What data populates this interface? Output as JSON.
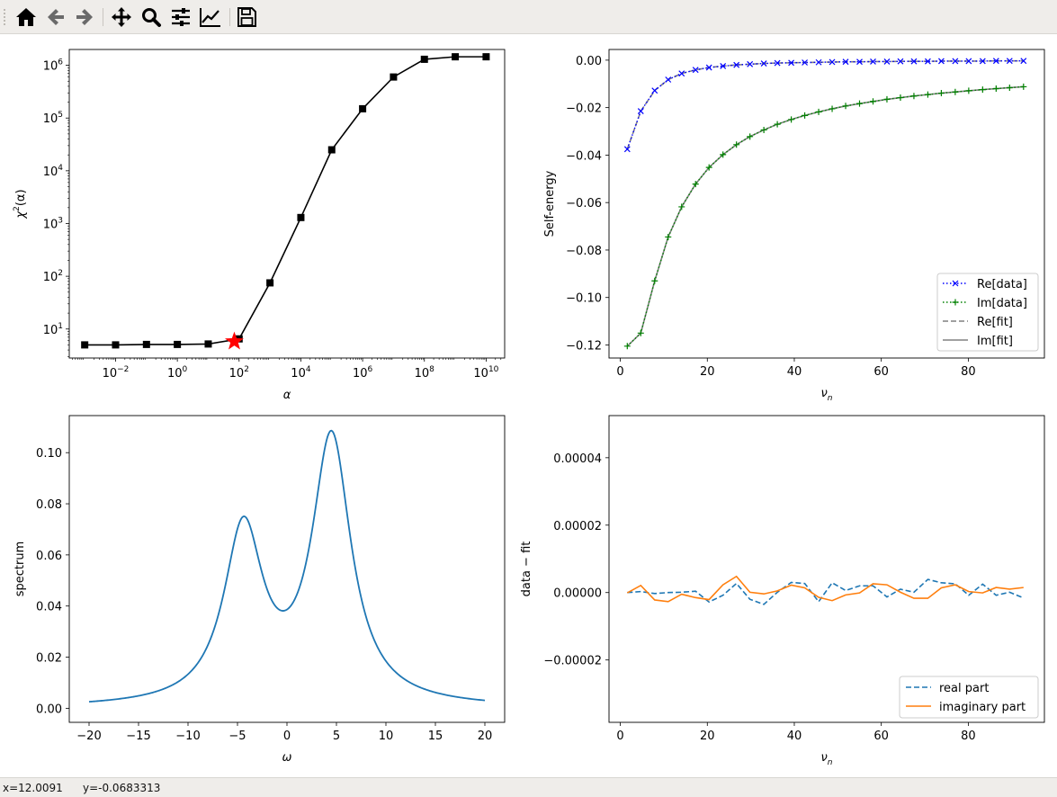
{
  "toolbar": {
    "buttons": [
      {
        "name": "home-button",
        "icon": "home-icon"
      },
      {
        "name": "back-button",
        "icon": "arrow-left-icon"
      },
      {
        "name": "forward-button",
        "icon": "arrow-right-icon"
      },
      {
        "name": "pan-button",
        "icon": "move-icon"
      },
      {
        "name": "zoom-button",
        "icon": "magnifier-icon"
      },
      {
        "name": "configure-subplots-button",
        "icon": "sliders-icon"
      },
      {
        "name": "edit-axis-button",
        "icon": "line-chart-icon"
      },
      {
        "name": "save-button",
        "icon": "floppy-disk-icon"
      }
    ]
  },
  "status": {
    "x": "x=12.0091",
    "y": "y=-0.0683313"
  },
  "chart_data": [
    {
      "id": "chi2",
      "type": "line",
      "xscale": "log",
      "yscale": "log",
      "xlabel_base": "α",
      "ylabel_base": "χ",
      "ylabel_sup": "2",
      "ylabel_tail": "(α)",
      "xlim_exp": [
        -3.5,
        10.6
      ],
      "ylim_exp": [
        0.45,
        6.3
      ],
      "xticks": [
        {
          "base": "10",
          "exp": "−2",
          "e": -2
        },
        {
          "base": "10",
          "exp": "0",
          "e": 0
        },
        {
          "base": "10",
          "exp": "2",
          "e": 2
        },
        {
          "base": "10",
          "exp": "4",
          "e": 4
        },
        {
          "base": "10",
          "exp": "6",
          "e": 6
        },
        {
          "base": "10",
          "exp": "8",
          "e": 8
        },
        {
          "base": "10",
          "exp": "10",
          "e": 10
        }
      ],
      "yticks": [
        {
          "base": "10",
          "exp": "1",
          "e": 1
        },
        {
          "base": "10",
          "exp": "2",
          "e": 2
        },
        {
          "base": "10",
          "exp": "3",
          "e": 3
        },
        {
          "base": "10",
          "exp": "4",
          "e": 4
        },
        {
          "base": "10",
          "exp": "5",
          "e": 5
        },
        {
          "base": "10",
          "exp": "6",
          "e": 6
        }
      ],
      "x_exp": [
        -3,
        -2,
        -1,
        0,
        1,
        2,
        3,
        4,
        5,
        6,
        7,
        8,
        9,
        10
      ],
      "y": [
        5.0,
        5.0,
        5.1,
        5.1,
        5.2,
        6.5,
        75,
        1300,
        25000,
        150000,
        600000,
        1300000,
        1450000,
        1450000
      ],
      "selected": {
        "x": 70,
        "y": 5.8,
        "marker": "star",
        "color": "#ff0000"
      },
      "color": "#000000"
    },
    {
      "id": "selfenergy",
      "type": "line",
      "xlabel_base": "ν",
      "xlabel_sub": "n",
      "ylabel": "Self-energy",
      "xlim": [
        -2.6,
        97.5
      ],
      "ylim": [
        -0.1255,
        0.0045
      ],
      "xticks": [
        "0",
        "20",
        "40",
        "60",
        "80"
      ],
      "yticks": [
        "0.00",
        "−0.02",
        "−0.04",
        "−0.06",
        "−0.08",
        "−0.10",
        "−0.12"
      ],
      "x": [
        1.6,
        4.7,
        7.9,
        11.0,
        14.1,
        17.3,
        20.4,
        23.6,
        26.7,
        29.8,
        33.0,
        36.1,
        39.3,
        42.4,
        45.6,
        48.7,
        51.8,
        55.0,
        58.1,
        61.3,
        64.4,
        67.5,
        70.7,
        73.8,
        77.0,
        80.1,
        83.3,
        86.4,
        89.5,
        92.7
      ],
      "series": [
        {
          "name": "Re[data]",
          "style": "dotted",
          "marker": "x",
          "color": "#0000ff",
          "values": [
            -0.0375,
            -0.0215,
            -0.0128,
            -0.0082,
            -0.0056,
            -0.0041,
            -0.0031,
            -0.0025,
            -0.002,
            -0.0017,
            -0.0014,
            -0.0012,
            -0.0011,
            -0.001,
            -0.0009,
            -0.0008,
            -0.0007,
            -0.0007,
            -0.0006,
            -0.0006,
            -0.0005,
            -0.0005,
            -0.0005,
            -0.0004,
            -0.0004,
            -0.0004,
            -0.0004,
            -0.0003,
            -0.0003,
            -0.0003
          ]
        },
        {
          "name": "Im[data]",
          "style": "dotted",
          "marker": "+",
          "color": "#008000",
          "values": [
            -0.1205,
            -0.115,
            -0.093,
            -0.0745,
            -0.0618,
            -0.0522,
            -0.0452,
            -0.0398,
            -0.0356,
            -0.0322,
            -0.0294,
            -0.027,
            -0.025,
            -0.0233,
            -0.0218,
            -0.0205,
            -0.0193,
            -0.0183,
            -0.0174,
            -0.0165,
            -0.0158,
            -0.0151,
            -0.0145,
            -0.0139,
            -0.0134,
            -0.0129,
            -0.0124,
            -0.012,
            -0.0116,
            -0.0112
          ]
        },
        {
          "name": "Re[fit]",
          "style": "dashed",
          "color": "#808080",
          "ref": 0
        },
        {
          "name": "Im[fit]",
          "style": "solid",
          "color": "#808080",
          "ref": 1
        }
      ],
      "legend": "lower-right"
    },
    {
      "id": "spectrum",
      "type": "line",
      "xlabel": "ω",
      "ylabel": "spectrum",
      "xlim": [
        -22,
        22
      ],
      "ylim": [
        -0.0055,
        0.1145
      ],
      "xticks": [
        "−20",
        "−15",
        "−10",
        "−5",
        "0",
        "5",
        "10",
        "15",
        "20"
      ],
      "yticks": [
        "0.00",
        "0.02",
        "0.04",
        "0.06",
        "0.08",
        "0.10"
      ],
      "components": [
        {
          "center": -4.4,
          "amplitude": 0.068,
          "width": 2.4
        },
        {
          "center": 4.5,
          "amplitude": 0.104,
          "width": 2.4
        }
      ],
      "range": [
        -20,
        20
      ],
      "color": "#1f77b4"
    },
    {
      "id": "residual",
      "type": "line",
      "xlabel_base": "ν",
      "xlabel_sub": "n",
      "ylabel": "data − fit",
      "xlim": [
        -2.6,
        97.5
      ],
      "ylim": [
        -3.85e-05,
        5.25e-05
      ],
      "xticks": [
        "0",
        "20",
        "40",
        "60",
        "80"
      ],
      "yticks": [
        "0.00004",
        "0.00002",
        "0.00000",
        "−0.00002"
      ],
      "ytick_values": [
        4e-05,
        2e-05,
        0.0,
        -2e-05
      ],
      "x": [
        1.6,
        4.7,
        7.9,
        11.0,
        14.1,
        17.3,
        20.4,
        23.6,
        26.7,
        29.8,
        33.0,
        36.1,
        39.3,
        42.4,
        45.6,
        48.7,
        51.8,
        55.0,
        58.1,
        61.3,
        64.4,
        67.5,
        70.7,
        73.8,
        77.0,
        80.1,
        83.3,
        86.4,
        89.5,
        92.7
      ],
      "series": [
        {
          "name": "real part",
          "style": "dashed",
          "color": "#1f77b4",
          "values": [
            0.0,
            3e-07,
            -3e-07,
            0.0,
            1e-07,
            4e-07,
            -2.8e-06,
            -8e-07,
            2.7e-06,
            -2e-06,
            -3.5e-06,
            1e-07,
            3e-06,
            2.7e-06,
            -2.7e-06,
            2.9e-06,
            6e-07,
            2e-06,
            2e-06,
            -1.3e-06,
            1e-06,
            1e-07,
            3.9e-06,
            2.9e-06,
            2.6e-06,
            -8e-07,
            2.5e-06,
            -8e-07,
            1e-07,
            -1.6e-06
          ]
        },
        {
          "name": "imaginary part",
          "style": "solid",
          "color": "#ff7f0e",
          "values": [
            -1e-07,
            2.1e-06,
            -2.2e-06,
            -2.7e-06,
            -5e-07,
            -1.5e-06,
            -2.1e-06,
            2.3e-06,
            4.8e-06,
            1e-07,
            -4e-07,
            5e-07,
            2.2e-06,
            1.4e-06,
            -1.4e-06,
            -2.4e-06,
            -7e-07,
            -1e-07,
            2.6e-06,
            2.3e-06,
            1e-07,
            -1.7e-06,
            -1.7e-06,
            1.4e-06,
            2.3e-06,
            3e-07,
            -1e-07,
            1.5e-06,
            1e-06,
            1.5e-06
          ]
        }
      ],
      "legend": "lower-right"
    }
  ]
}
